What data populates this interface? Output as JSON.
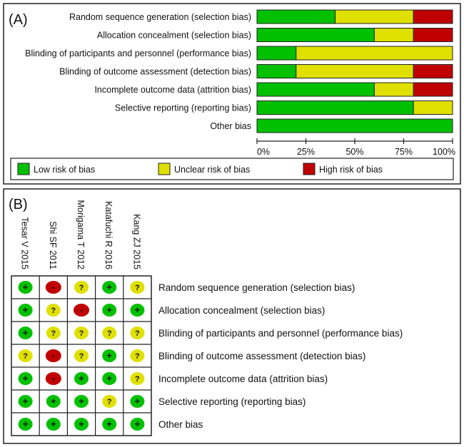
{
  "chart_data": [
    {
      "type": "bar",
      "panel_label": "(A)",
      "orientation": "horizontal-stacked-percent",
      "categories": [
        "Random sequence generation (selection bias)",
        "Allocation concealment (selection bias)",
        "Blinding of participants and personnel (performance bias)",
        "Blinding of outcome assessment (detection bias)",
        "Incomplete outcome data (attrition bias)",
        "Selective reporting (reporting bias)",
        "Other bias"
      ],
      "series": [
        {
          "name": "Low risk of bias",
          "color": "#00c000",
          "values": [
            40,
            60,
            20,
            20,
            60,
            80,
            100
          ]
        },
        {
          "name": "Unclear risk of bias",
          "color": "#e0e000",
          "values": [
            40,
            20,
            80,
            60,
            20,
            20,
            0
          ]
        },
        {
          "name": "High risk of bias",
          "color": "#c00000",
          "values": [
            20,
            20,
            0,
            20,
            20,
            0,
            0
          ]
        }
      ],
      "xlim": [
        0,
        100
      ],
      "xticks": [
        "0%",
        "25%",
        "50%",
        "75%",
        "100%"
      ],
      "legend_placement": "bottom"
    },
    {
      "type": "table",
      "panel_label": "(B)",
      "studies": [
        "Tesar V 2015",
        "Shi SF 2011",
        "Morigama T 2012",
        "Katafuchi R 2016",
        "Kang ZJ 2015"
      ],
      "domains": [
        "Random sequence generation (selection bias)",
        "Allocation concealment (selection bias)",
        "Blinding of participants and personnel (performance bias)",
        "Blinding of outcome assessment (detection bias)",
        "Incomplete outcome data (attrition bias)",
        "Selective reporting (reporting bias)",
        "Other bias"
      ],
      "judgements": [
        [
          "+",
          "-",
          "?",
          "+",
          "?"
        ],
        [
          "+",
          "?",
          "-",
          "+",
          "+"
        ],
        [
          "+",
          "?",
          "?",
          "?",
          "?"
        ],
        [
          "?",
          "-",
          "?",
          "+",
          "?"
        ],
        [
          "+",
          "-",
          "+",
          "+",
          "?"
        ],
        [
          "+",
          "+",
          "+",
          "?",
          "+"
        ],
        [
          "+",
          "+",
          "+",
          "+",
          "+"
        ]
      ],
      "symbol_colors": {
        "+": "#00c000",
        "?": "#e0e000",
        "-": "#c00000"
      }
    }
  ]
}
